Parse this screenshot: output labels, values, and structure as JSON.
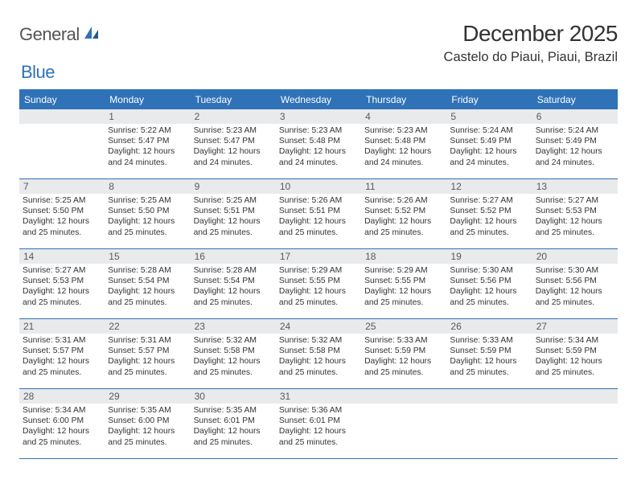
{
  "brand": {
    "part1": "General",
    "part2": "Blue"
  },
  "title": "December 2025",
  "location": "Castelo do Piaui, Piaui, Brazil",
  "colors": {
    "accent": "#2f72b8",
    "daybar_bg": "#e9eaec",
    "text": "#333333",
    "weekday_text": "#ffffff",
    "background": "#ffffff",
    "logo_gray": "#555555"
  },
  "weekdays": [
    "Sunday",
    "Monday",
    "Tuesday",
    "Wednesday",
    "Thursday",
    "Friday",
    "Saturday"
  ],
  "weeks": [
    [
      {
        "day": "",
        "sunrise": "",
        "sunset": "",
        "daylight1": "",
        "daylight2": "",
        "empty": true
      },
      {
        "day": "1",
        "sunrise": "Sunrise: 5:22 AM",
        "sunset": "Sunset: 5:47 PM",
        "daylight1": "Daylight: 12 hours",
        "daylight2": "and 24 minutes."
      },
      {
        "day": "2",
        "sunrise": "Sunrise: 5:23 AM",
        "sunset": "Sunset: 5:47 PM",
        "daylight1": "Daylight: 12 hours",
        "daylight2": "and 24 minutes."
      },
      {
        "day": "3",
        "sunrise": "Sunrise: 5:23 AM",
        "sunset": "Sunset: 5:48 PM",
        "daylight1": "Daylight: 12 hours",
        "daylight2": "and 24 minutes."
      },
      {
        "day": "4",
        "sunrise": "Sunrise: 5:23 AM",
        "sunset": "Sunset: 5:48 PM",
        "daylight1": "Daylight: 12 hours",
        "daylight2": "and 24 minutes."
      },
      {
        "day": "5",
        "sunrise": "Sunrise: 5:24 AM",
        "sunset": "Sunset: 5:49 PM",
        "daylight1": "Daylight: 12 hours",
        "daylight2": "and 24 minutes."
      },
      {
        "day": "6",
        "sunrise": "Sunrise: 5:24 AM",
        "sunset": "Sunset: 5:49 PM",
        "daylight1": "Daylight: 12 hours",
        "daylight2": "and 24 minutes."
      }
    ],
    [
      {
        "day": "7",
        "sunrise": "Sunrise: 5:25 AM",
        "sunset": "Sunset: 5:50 PM",
        "daylight1": "Daylight: 12 hours",
        "daylight2": "and 25 minutes."
      },
      {
        "day": "8",
        "sunrise": "Sunrise: 5:25 AM",
        "sunset": "Sunset: 5:50 PM",
        "daylight1": "Daylight: 12 hours",
        "daylight2": "and 25 minutes."
      },
      {
        "day": "9",
        "sunrise": "Sunrise: 5:25 AM",
        "sunset": "Sunset: 5:51 PM",
        "daylight1": "Daylight: 12 hours",
        "daylight2": "and 25 minutes."
      },
      {
        "day": "10",
        "sunrise": "Sunrise: 5:26 AM",
        "sunset": "Sunset: 5:51 PM",
        "daylight1": "Daylight: 12 hours",
        "daylight2": "and 25 minutes."
      },
      {
        "day": "11",
        "sunrise": "Sunrise: 5:26 AM",
        "sunset": "Sunset: 5:52 PM",
        "daylight1": "Daylight: 12 hours",
        "daylight2": "and 25 minutes."
      },
      {
        "day": "12",
        "sunrise": "Sunrise: 5:27 AM",
        "sunset": "Sunset: 5:52 PM",
        "daylight1": "Daylight: 12 hours",
        "daylight2": "and 25 minutes."
      },
      {
        "day": "13",
        "sunrise": "Sunrise: 5:27 AM",
        "sunset": "Sunset: 5:53 PM",
        "daylight1": "Daylight: 12 hours",
        "daylight2": "and 25 minutes."
      }
    ],
    [
      {
        "day": "14",
        "sunrise": "Sunrise: 5:27 AM",
        "sunset": "Sunset: 5:53 PM",
        "daylight1": "Daylight: 12 hours",
        "daylight2": "and 25 minutes."
      },
      {
        "day": "15",
        "sunrise": "Sunrise: 5:28 AM",
        "sunset": "Sunset: 5:54 PM",
        "daylight1": "Daylight: 12 hours",
        "daylight2": "and 25 minutes."
      },
      {
        "day": "16",
        "sunrise": "Sunrise: 5:28 AM",
        "sunset": "Sunset: 5:54 PM",
        "daylight1": "Daylight: 12 hours",
        "daylight2": "and 25 minutes."
      },
      {
        "day": "17",
        "sunrise": "Sunrise: 5:29 AM",
        "sunset": "Sunset: 5:55 PM",
        "daylight1": "Daylight: 12 hours",
        "daylight2": "and 25 minutes."
      },
      {
        "day": "18",
        "sunrise": "Sunrise: 5:29 AM",
        "sunset": "Sunset: 5:55 PM",
        "daylight1": "Daylight: 12 hours",
        "daylight2": "and 25 minutes."
      },
      {
        "day": "19",
        "sunrise": "Sunrise: 5:30 AM",
        "sunset": "Sunset: 5:56 PM",
        "daylight1": "Daylight: 12 hours",
        "daylight2": "and 25 minutes."
      },
      {
        "day": "20",
        "sunrise": "Sunrise: 5:30 AM",
        "sunset": "Sunset: 5:56 PM",
        "daylight1": "Daylight: 12 hours",
        "daylight2": "and 25 minutes."
      }
    ],
    [
      {
        "day": "21",
        "sunrise": "Sunrise: 5:31 AM",
        "sunset": "Sunset: 5:57 PM",
        "daylight1": "Daylight: 12 hours",
        "daylight2": "and 25 minutes."
      },
      {
        "day": "22",
        "sunrise": "Sunrise: 5:31 AM",
        "sunset": "Sunset: 5:57 PM",
        "daylight1": "Daylight: 12 hours",
        "daylight2": "and 25 minutes."
      },
      {
        "day": "23",
        "sunrise": "Sunrise: 5:32 AM",
        "sunset": "Sunset: 5:58 PM",
        "daylight1": "Daylight: 12 hours",
        "daylight2": "and 25 minutes."
      },
      {
        "day": "24",
        "sunrise": "Sunrise: 5:32 AM",
        "sunset": "Sunset: 5:58 PM",
        "daylight1": "Daylight: 12 hours",
        "daylight2": "and 25 minutes."
      },
      {
        "day": "25",
        "sunrise": "Sunrise: 5:33 AM",
        "sunset": "Sunset: 5:59 PM",
        "daylight1": "Daylight: 12 hours",
        "daylight2": "and 25 minutes."
      },
      {
        "day": "26",
        "sunrise": "Sunrise: 5:33 AM",
        "sunset": "Sunset: 5:59 PM",
        "daylight1": "Daylight: 12 hours",
        "daylight2": "and 25 minutes."
      },
      {
        "day": "27",
        "sunrise": "Sunrise: 5:34 AM",
        "sunset": "Sunset: 5:59 PM",
        "daylight1": "Daylight: 12 hours",
        "daylight2": "and 25 minutes."
      }
    ],
    [
      {
        "day": "28",
        "sunrise": "Sunrise: 5:34 AM",
        "sunset": "Sunset: 6:00 PM",
        "daylight1": "Daylight: 12 hours",
        "daylight2": "and 25 minutes."
      },
      {
        "day": "29",
        "sunrise": "Sunrise: 5:35 AM",
        "sunset": "Sunset: 6:00 PM",
        "daylight1": "Daylight: 12 hours",
        "daylight2": "and 25 minutes."
      },
      {
        "day": "30",
        "sunrise": "Sunrise: 5:35 AM",
        "sunset": "Sunset: 6:01 PM",
        "daylight1": "Daylight: 12 hours",
        "daylight2": "and 25 minutes."
      },
      {
        "day": "31",
        "sunrise": "Sunrise: 5:36 AM",
        "sunset": "Sunset: 6:01 PM",
        "daylight1": "Daylight: 12 hours",
        "daylight2": "and 25 minutes."
      },
      {
        "day": "",
        "sunrise": "",
        "sunset": "",
        "daylight1": "",
        "daylight2": "",
        "empty": true
      },
      {
        "day": "",
        "sunrise": "",
        "sunset": "",
        "daylight1": "",
        "daylight2": "",
        "empty": true
      },
      {
        "day": "",
        "sunrise": "",
        "sunset": "",
        "daylight1": "",
        "daylight2": "",
        "empty": true
      }
    ]
  ]
}
